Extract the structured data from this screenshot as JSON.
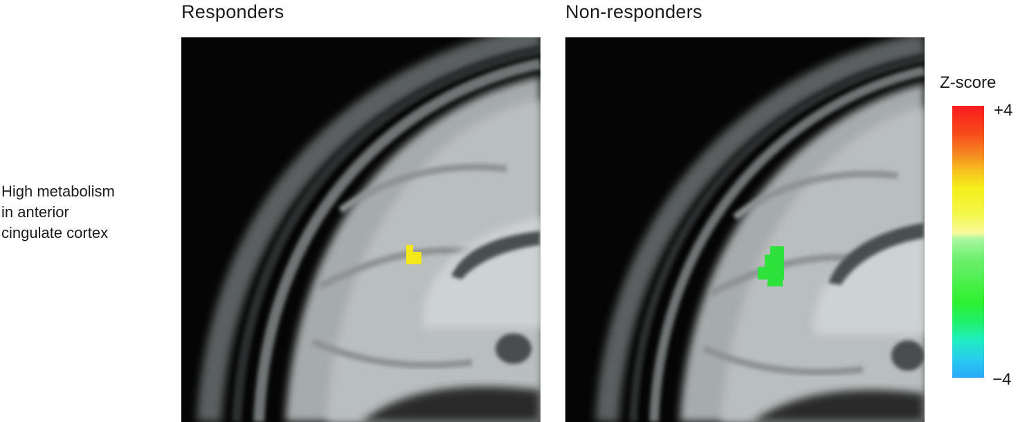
{
  "panels": {
    "responders": {
      "title": "Responders"
    },
    "non_responders": {
      "title": "Non-responders"
    }
  },
  "row_label": {
    "lines": [
      "High metabolism",
      "in anterior",
      "cingulate cortex"
    ]
  },
  "colorbar": {
    "title": "Z-score",
    "max_label": "+4",
    "min_label": "−4",
    "colors": {
      "top": "#f81c1e",
      "middle": "#f5ee1a",
      "lower": "#2ef02f",
      "bottom": "#2aa8f8"
    }
  },
  "overlays": {
    "responders_color": "#f2e81a",
    "non_responders_color": "#2de23a"
  }
}
